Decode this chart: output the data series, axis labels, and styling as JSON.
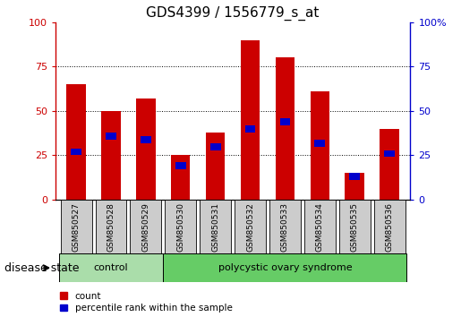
{
  "title": "GDS4399 / 1556779_s_at",
  "samples": [
    "GSM850527",
    "GSM850528",
    "GSM850529",
    "GSM850530",
    "GSM850531",
    "GSM850532",
    "GSM850533",
    "GSM850534",
    "GSM850535",
    "GSM850536"
  ],
  "count_values": [
    65,
    50,
    57,
    25,
    38,
    90,
    80,
    61,
    15,
    40
  ],
  "percentile_values": [
    27,
    36,
    34,
    19,
    30,
    40,
    44,
    32,
    13,
    26
  ],
  "bar_color": "#cc0000",
  "percentile_color": "#0000cc",
  "ylim": [
    0,
    100
  ],
  "yticks": [
    0,
    25,
    50,
    75,
    100
  ],
  "ytick_labels_left": [
    "0",
    "25",
    "50",
    "75",
    "100"
  ],
  "ytick_labels_right": [
    "0",
    "25",
    "50",
    "75",
    "100%"
  ],
  "grid_color": "black",
  "n_control": 3,
  "control_label": "control",
  "disease_label": "polycystic ovary syndrome",
  "group_label": "disease state",
  "control_color": "#aaddaa",
  "disease_color": "#66cc66",
  "legend_count_label": "count",
  "legend_percentile_label": "percentile rank within the sample",
  "bar_width": 0.55,
  "sample_bg_color": "#cccccc",
  "title_fontsize": 11,
  "tick_fontsize": 8,
  "label_fontsize": 8,
  "group_label_fontsize": 9
}
